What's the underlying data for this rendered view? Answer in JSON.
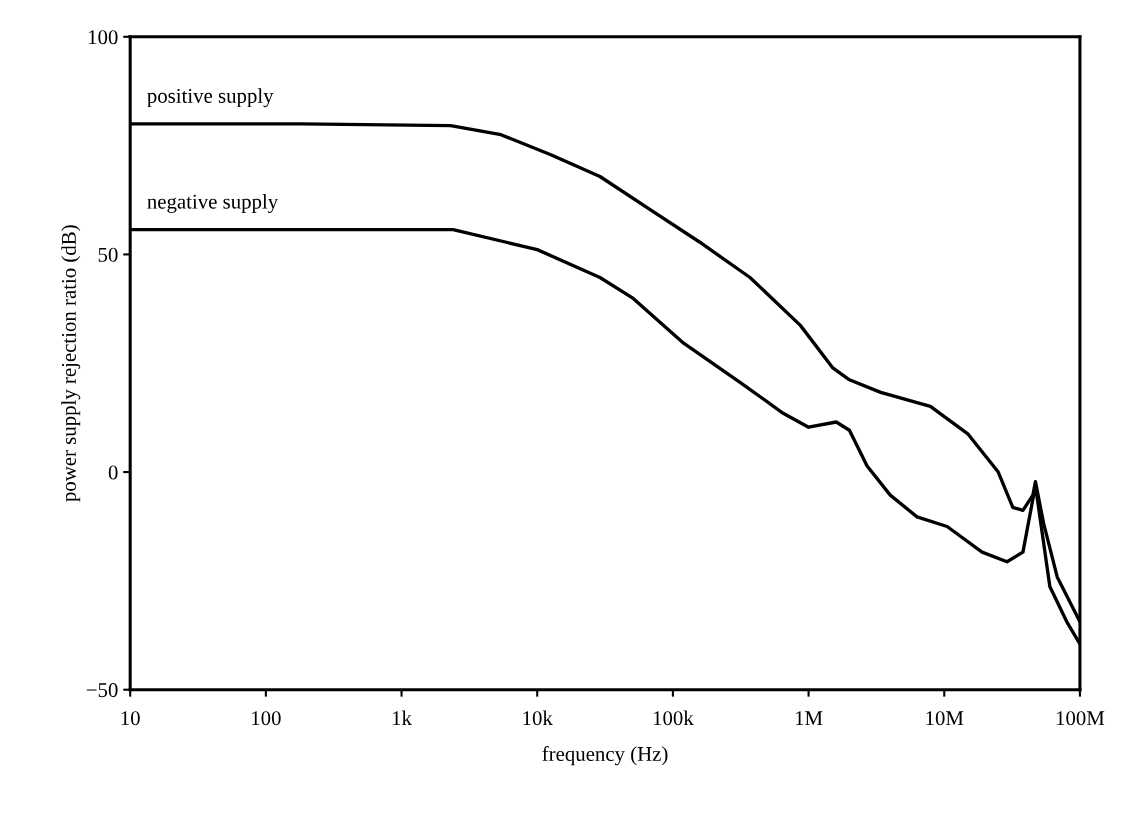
{
  "chart_data": {
    "type": "line",
    "xlabel": "frequency (Hz)",
    "ylabel": "power supply rejection ratio (dB)",
    "log": "x",
    "xlim": [
      10,
      100000000
    ],
    "ylim": [
      -50,
      100
    ],
    "xticks": [
      10,
      100,
      {
        "value": 1000,
        "label": "1k"
      },
      {
        "value": 10000,
        "label": "10k"
      },
      {
        "value": 100000,
        "label": "100k"
      },
      {
        "value": 1000000,
        "label": "1M"
      },
      {
        "value": 10000000,
        "label": "10M"
      },
      {
        "value": 100000000,
        "label": "100M"
      }
    ],
    "yticks": [
      {
        "value": -50,
        "label": "−50"
      },
      0,
      50,
      100
    ],
    "grid": false,
    "legend": false,
    "marker": "none",
    "line_style": "solid",
    "series": [
      {
        "name": "positive supply",
        "color": "#000000",
        "x": [
          10,
          180,
          2300,
          5400,
          12600,
          29000,
          68000,
          158000,
          370000,
          870000,
          1500000,
          2000000,
          3400000,
          7900000,
          15000000,
          25000000,
          32000000,
          38000000,
          45000000,
          47000000,
          54000000,
          68000000,
          100000000
        ],
        "values": [
          80,
          80,
          79.6,
          77.5,
          72.9,
          67.9,
          60.3,
          52.8,
          44.7,
          33.7,
          24,
          21.2,
          18.3,
          15.1,
          8.7,
          0,
          -8.1,
          -8.8,
          -5.3,
          -2.2,
          -11.8,
          -24.1,
          -34.4
        ]
      },
      {
        "name": "negative supply",
        "color": "#000000",
        "x": [
          10,
          2400,
          10000,
          29000,
          51000,
          120000,
          320000,
          650000,
          1000000,
          1600000,
          2000000,
          2700000,
          4000000,
          6300000,
          10500000,
          19000000,
          29000000,
          38000000,
          47000000,
          60000000,
          80000000,
          100000000
        ],
        "values": [
          55.7,
          55.7,
          51.1,
          44.7,
          39.9,
          29.6,
          20.4,
          13.5,
          10.3,
          11.5,
          9.6,
          1.4,
          -5.3,
          -10.3,
          -12.5,
          -18.4,
          -20.6,
          -18.4,
          -3.1,
          -26.3,
          -34.4,
          -39.5
        ]
      }
    ]
  }
}
